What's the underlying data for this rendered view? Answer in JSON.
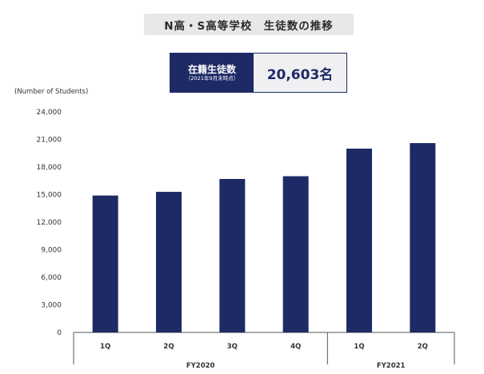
{
  "title": "N高・S高等学校　生徒数の推移",
  "kpi": {
    "label": "在籍生徒数",
    "sublabel": "（2021年9月末時点）",
    "value": "20,603名"
  },
  "colors": {
    "bar": "#1e2a66",
    "axis": "#555555"
  },
  "chart_data": {
    "type": "bar",
    "title": "",
    "ylabel": "(Number of Students)",
    "xlabel": "",
    "ylim": [
      0,
      24000
    ],
    "yticks": [
      "0",
      "3,000",
      "6,000",
      "9,000",
      "12,000",
      "15,000",
      "18,000",
      "21,000",
      "24,000"
    ],
    "categories": [
      "1Q",
      "2Q",
      "3Q",
      "4Q",
      "1Q",
      "2Q"
    ],
    "groups": [
      {
        "label": "FY2020",
        "categories": [
          "1Q",
          "2Q",
          "3Q",
          "4Q"
        ]
      },
      {
        "label": "FY2021",
        "categories": [
          "1Q",
          "2Q"
        ]
      }
    ],
    "values": [
      14900,
      15300,
      16700,
      17000,
      20000,
      20603
    ]
  }
}
